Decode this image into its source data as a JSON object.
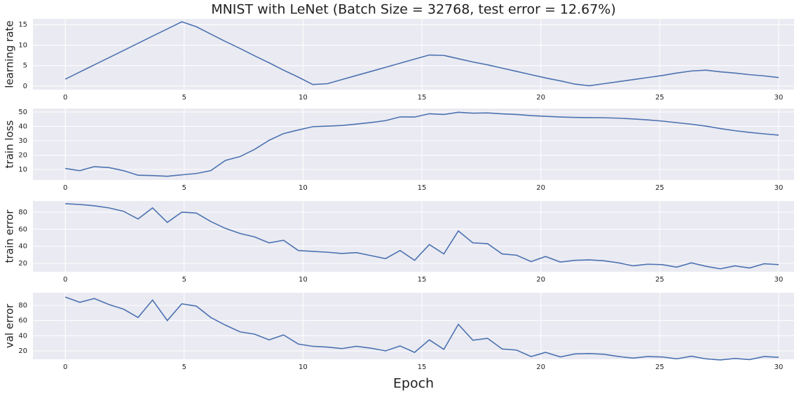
{
  "chart_data": [
    {
      "type": "line",
      "title": "MNIST with LeNet (Batch Size = 32768, test error = 12.67%)",
      "ylabel": "learning rate",
      "x": [
        0,
        0.61,
        1.22,
        1.84,
        2.45,
        3.06,
        3.67,
        4.29,
        4.9,
        5.51,
        6.12,
        6.73,
        7.35,
        7.96,
        8.57,
        9.18,
        9.8,
        10.41,
        11.02,
        11.63,
        12.24,
        12.86,
        13.47,
        14.08,
        14.69,
        15.31,
        15.92,
        16.53,
        17.14,
        17.76,
        18.37,
        18.98,
        19.59,
        20.2,
        20.82,
        21.43,
        22.04,
        22.65,
        23.27,
        23.88,
        24.49,
        25.1,
        25.71,
        26.33,
        26.94,
        27.55,
        28.16,
        28.78,
        29.39,
        30.0
      ],
      "values": [
        1.7,
        3.45,
        5.2,
        6.95,
        8.7,
        10.45,
        12.2,
        13.95,
        15.7,
        14.5,
        12.7,
        10.9,
        9.2,
        7.4,
        5.7,
        3.9,
        2.2,
        0.4,
        0.6,
        1.6,
        2.6,
        3.6,
        4.6,
        5.6,
        6.6,
        7.6,
        7.5,
        6.7,
        5.9,
        5.2,
        4.4,
        3.6,
        2.8,
        2.0,
        1.3,
        0.5,
        0.1,
        0.6,
        1.1,
        1.6,
        2.1,
        2.6,
        3.2,
        3.7,
        3.9,
        3.5,
        3.2,
        2.8,
        2.5,
        2.1
      ],
      "color": "#4c72b0",
      "xlim": [
        -1.36,
        30.65
      ],
      "xticks": [
        0,
        5,
        10,
        15,
        20,
        25,
        30
      ],
      "ylim": [
        -0.85,
        16.4
      ],
      "yticks": [
        0,
        5,
        10,
        15
      ],
      "grid": true
    },
    {
      "type": "line",
      "ylabel": "train loss",
      "x": [
        0,
        0.61,
        1.22,
        1.84,
        2.45,
        3.06,
        3.67,
        4.29,
        4.9,
        5.51,
        6.12,
        6.73,
        7.35,
        7.96,
        8.57,
        9.18,
        9.8,
        10.41,
        11.02,
        11.63,
        12.24,
        12.86,
        13.47,
        14.08,
        14.69,
        15.31,
        15.92,
        16.53,
        17.14,
        17.76,
        18.37,
        18.98,
        19.59,
        20.2,
        20.82,
        21.43,
        22.04,
        22.65,
        23.27,
        23.88,
        24.49,
        25.1,
        25.71,
        26.33,
        26.94,
        27.55,
        28.16,
        28.78,
        29.39,
        30.0
      ],
      "values": [
        10.7,
        9.2,
        12,
        11.3,
        9.2,
        6,
        5.8,
        5.3,
        6.3,
        7.2,
        9.2,
        16.3,
        19,
        24,
        30.3,
        35,
        37.5,
        39.8,
        40.2,
        40.6,
        41.6,
        42.7,
        44,
        46.6,
        46.5,
        48.8,
        48.3,
        49.8,
        49.2,
        49.4,
        48.7,
        48.3,
        47.5,
        47,
        46.5,
        46.2,
        46.1,
        46,
        45.7,
        45.2,
        44.5,
        43.7,
        42.6,
        41.5,
        40.2,
        38.5,
        37,
        35.8,
        34.8,
        33.9
      ],
      "color": "#4c72b0",
      "xlim": [
        -1.36,
        30.65
      ],
      "xticks": [
        0,
        5,
        10,
        15,
        20,
        25,
        30
      ],
      "ylim": [
        2.7,
        52.4
      ],
      "yticks": [
        10,
        20,
        30,
        40,
        50
      ],
      "grid": true
    },
    {
      "type": "line",
      "ylabel": "train error",
      "x": [
        0,
        0.61,
        1.22,
        1.84,
        2.45,
        3.06,
        3.67,
        4.29,
        4.9,
        5.51,
        6.12,
        6.73,
        7.35,
        7.96,
        8.57,
        9.18,
        9.8,
        10.41,
        11.02,
        11.63,
        12.24,
        12.86,
        13.47,
        14.08,
        14.69,
        15.31,
        15.92,
        16.53,
        17.14,
        17.76,
        18.37,
        18.98,
        19.59,
        20.2,
        20.82,
        21.43,
        22.04,
        22.65,
        23.27,
        23.88,
        24.49,
        25.1,
        25.71,
        26.33,
        26.94,
        27.55,
        28.16,
        28.78,
        29.39,
        30.0
      ],
      "values": [
        90,
        89,
        87.5,
        85,
        81,
        72,
        85,
        68,
        80,
        79,
        69,
        61,
        55,
        51,
        44,
        47,
        35,
        34,
        33,
        31.5,
        32.5,
        29,
        25.5,
        35,
        23.5,
        42,
        31,
        58,
        44,
        43,
        31,
        29.5,
        22,
        28,
        21.5,
        23.5,
        24,
        23,
        20.5,
        17,
        19,
        18.5,
        15.5,
        20.5,
        16.5,
        13.5,
        17,
        14.5,
        19.5,
        18.5
      ],
      "color": "#4c72b0",
      "xlim": [
        -1.36,
        30.65
      ],
      "xticks": [
        0,
        5,
        10,
        15,
        20,
        25,
        30
      ],
      "ylim": [
        10.1,
        93.1
      ],
      "yticks": [
        20,
        40,
        60,
        80
      ],
      "grid": true
    },
    {
      "type": "line",
      "ylabel": "val error",
      "xlabel": "Epoch",
      "x": [
        0,
        0.61,
        1.22,
        1.84,
        2.45,
        3.06,
        3.67,
        4.29,
        4.9,
        5.51,
        6.12,
        6.73,
        7.35,
        7.96,
        8.57,
        9.18,
        9.8,
        10.41,
        11.02,
        11.63,
        12.24,
        12.86,
        13.47,
        14.08,
        14.69,
        15.31,
        15.92,
        16.53,
        17.14,
        17.76,
        18.37,
        18.98,
        19.59,
        20.2,
        20.82,
        21.43,
        22.04,
        22.65,
        23.27,
        23.88,
        24.49,
        25.1,
        25.71,
        26.33,
        26.94,
        27.55,
        28.16,
        28.78,
        29.39,
        30.0
      ],
      "values": [
        91,
        84,
        89,
        81,
        75,
        64,
        87,
        60,
        82,
        79,
        64,
        54,
        45,
        42,
        34.5,
        41,
        29,
        26,
        25,
        23,
        26,
        23.5,
        20,
        26.5,
        18,
        34.5,
        22,
        55,
        34,
        36.5,
        22.5,
        21,
        12.5,
        18,
        12,
        16,
        16.5,
        15.5,
        12.5,
        10.5,
        12.5,
        12,
        9.5,
        13,
        9.5,
        8,
        10,
        8.5,
        12.5,
        11.5
      ],
      "color": "#4c72b0",
      "xlim": [
        -1.36,
        30.65
      ],
      "xticks": [
        0,
        5,
        10,
        15,
        20,
        25,
        30
      ],
      "ylim": [
        8.9,
        96.6
      ],
      "yticks": [
        20,
        40,
        60,
        80
      ],
      "grid": true
    }
  ]
}
